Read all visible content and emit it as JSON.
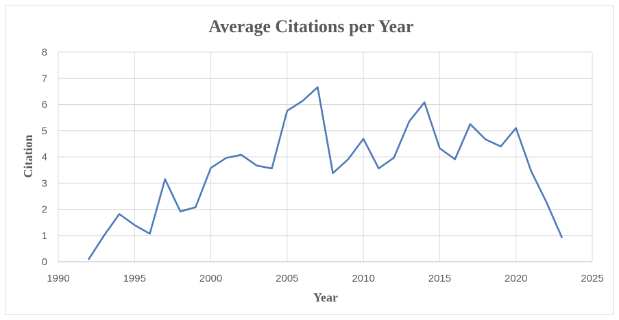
{
  "chart_data": {
    "type": "line",
    "title": "Average Citations per Year",
    "xlabel": "Year",
    "ylabel": "Citation",
    "xlim": [
      1990,
      2025
    ],
    "ylim": [
      0,
      8
    ],
    "x_ticks": [
      1990,
      1995,
      2000,
      2005,
      2010,
      2015,
      2020,
      2025
    ],
    "y_ticks": [
      0,
      1,
      2,
      3,
      4,
      5,
      6,
      7,
      8
    ],
    "grid": true,
    "legend": "none",
    "series": [
      {
        "color": "#4f79bb",
        "x": [
          1992,
          1993,
          1994,
          1995,
          1996,
          1997,
          1998,
          1999,
          2000,
          2001,
          2002,
          2003,
          2004,
          2005,
          2006,
          2007,
          2008,
          2009,
          2010,
          2011,
          2012,
          2013,
          2014,
          2015,
          2016,
          2017,
          2018,
          2019,
          2020,
          2021,
          2022,
          2023
        ],
        "y": [
          0.1,
          1.0,
          1.82,
          1.4,
          1.07,
          3.15,
          1.92,
          2.08,
          3.58,
          3.96,
          4.08,
          3.67,
          3.56,
          5.76,
          6.13,
          6.66,
          3.38,
          3.91,
          4.69,
          3.56,
          3.97,
          5.35,
          6.08,
          4.33,
          3.91,
          5.25,
          4.67,
          4.4,
          5.1,
          3.45,
          2.27,
          0.94
        ]
      }
    ]
  }
}
